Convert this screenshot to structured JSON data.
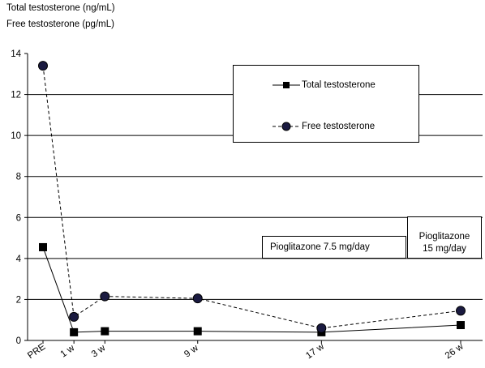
{
  "chart_data": {
    "type": "line",
    "ylabels": [
      "Total testosterone (ng/mL)",
      "Free testosterone (pg/mL)"
    ],
    "categories": [
      "PRE",
      "1 w",
      "3 w",
      "9 w",
      "17 w",
      "26 w"
    ],
    "x_weeks": [
      -1,
      1,
      3,
      9,
      17,
      26
    ],
    "ylim": [
      0,
      14
    ],
    "yticks": [
      0,
      2,
      4,
      6,
      8,
      10,
      12,
      14
    ],
    "grid": true,
    "legend_position": "top-right",
    "series": [
      {
        "name": "Total testosterone",
        "values": [
          4.55,
          0.4,
          0.45,
          0.45,
          0.4,
          0.75
        ],
        "marker": "square",
        "line": "solid",
        "color": "#000000"
      },
      {
        "name": "Free testosterone",
        "values": [
          13.4,
          1.15,
          2.15,
          2.05,
          0.6,
          1.45
        ],
        "marker": "circle",
        "line": "dashed",
        "color": "#000000",
        "marker_fill": "#1a1a40"
      }
    ],
    "annotations": [
      {
        "text": "Pioglitazone 7.5 mg/day"
      },
      {
        "text": "Pioglitazone\n15 mg/day"
      }
    ]
  }
}
